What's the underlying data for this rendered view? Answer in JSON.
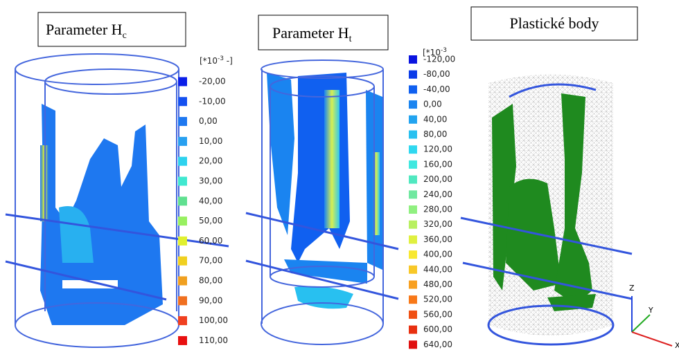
{
  "panels": [
    {
      "title": "Parameter H",
      "title_subscript": "c",
      "unit": {
        "base": "[*10",
        "exponent": "-3",
        "suffix": " -]"
      },
      "legend": [
        {
          "label": "-20,00",
          "color": "#0a1ee8"
        },
        {
          "label": "-10,00",
          "color": "#1450f0"
        },
        {
          "label": "0,00",
          "color": "#1e78f0"
        },
        {
          "label": "10,00",
          "color": "#28a0f0"
        },
        {
          "label": "20,00",
          "color": "#2ed2ee"
        },
        {
          "label": "30,00",
          "color": "#40e8d0"
        },
        {
          "label": "40,00",
          "color": "#60e090"
        },
        {
          "label": "50,00",
          "color": "#98f060"
        },
        {
          "label": "60,00",
          "color": "#e0f030"
        },
        {
          "label": "70,00",
          "color": "#f0d020"
        },
        {
          "label": "80,00",
          "color": "#f0a020"
        },
        {
          "label": "90,00",
          "color": "#f07020"
        },
        {
          "label": "100,00",
          "color": "#f04020"
        },
        {
          "label": "110,00",
          "color": "#e81010"
        }
      ]
    },
    {
      "title": "Parameter H",
      "title_subscript": "t",
      "unit": {
        "base": "[*10",
        "exponent": "-3"
      },
      "legend": [
        {
          "label": "-120,00",
          "color": "#0a14e0"
        },
        {
          "label": "-80,00",
          "color": "#0c3ce8"
        },
        {
          "label": "-40,00",
          "color": "#1060f0"
        },
        {
          "label": "0,00",
          "color": "#1a84f0"
        },
        {
          "label": "40,00",
          "color": "#22a4f0"
        },
        {
          "label": "80,00",
          "color": "#28c0f0"
        },
        {
          "label": "120,00",
          "color": "#30d8f0"
        },
        {
          "label": "160,00",
          "color": "#40e8e0"
        },
        {
          "label": "200,00",
          "color": "#50e8c0"
        },
        {
          "label": "240,00",
          "color": "#70e8a0"
        },
        {
          "label": "280,00",
          "color": "#90f080"
        },
        {
          "label": "320,00",
          "color": "#b8f060"
        },
        {
          "label": "360,00",
          "color": "#e0f040"
        },
        {
          "label": "400,00",
          "color": "#f8e830"
        },
        {
          "label": "440,00",
          "color": "#f8c828"
        },
        {
          "label": "480,00",
          "color": "#f8a020"
        },
        {
          "label": "520,00",
          "color": "#f87818"
        },
        {
          "label": "560,00",
          "color": "#f05014"
        },
        {
          "label": "600,00",
          "color": "#e83010"
        },
        {
          "label": "640,00",
          "color": "#e01010"
        }
      ]
    },
    {
      "title": "Plastické body"
    }
  ],
  "axes": {
    "z": "Z",
    "y": "Y",
    "x": "X"
  }
}
